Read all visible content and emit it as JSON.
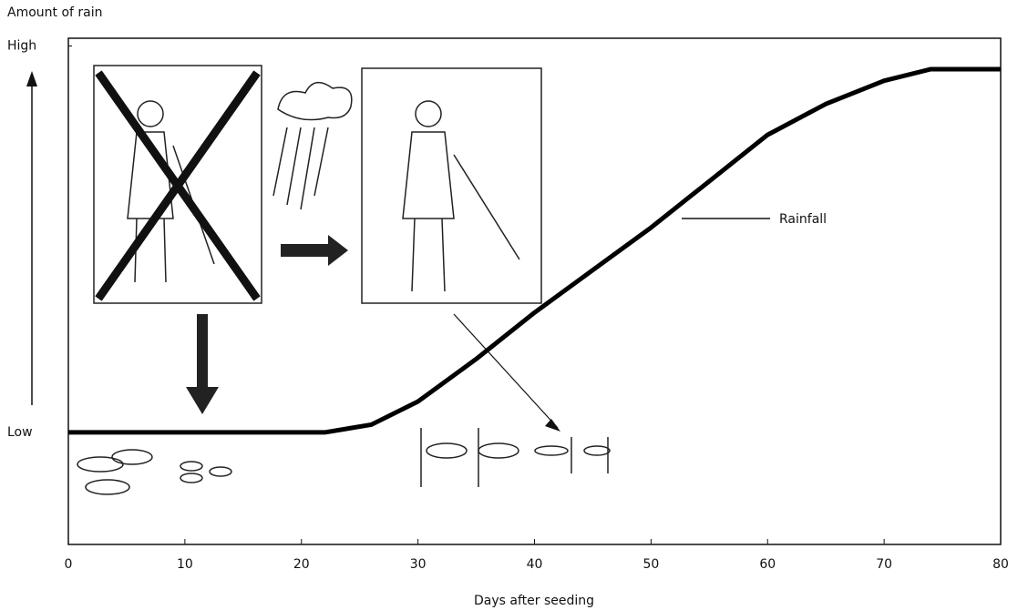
{
  "chart_data": {
    "type": "line",
    "ylabel": "Amount of rain",
    "xlabel": "Days after seeding",
    "x": [
      0,
      22,
      26,
      30,
      35,
      40,
      45,
      50,
      55,
      60,
      65,
      70,
      74,
      80
    ],
    "series": [
      {
        "name": "Rainfall",
        "color": "#000000",
        "values": [
          0,
          0,
          0.02,
          0.08,
          0.19,
          0.31,
          0.42,
          0.53,
          0.65,
          0.77,
          0.85,
          0.91,
          0.94,
          0.94
        ]
      }
    ],
    "xlim": [
      0,
      80
    ],
    "xticks": [
      0,
      10,
      20,
      30,
      40,
      50,
      60,
      70,
      80
    ],
    "ylim": [
      -0.29,
      1.02
    ],
    "yticks": [
      {
        "value": 0,
        "label": "Low"
      },
      {
        "value": 1,
        "label": "High"
      }
    ],
    "grid": false
  }
}
